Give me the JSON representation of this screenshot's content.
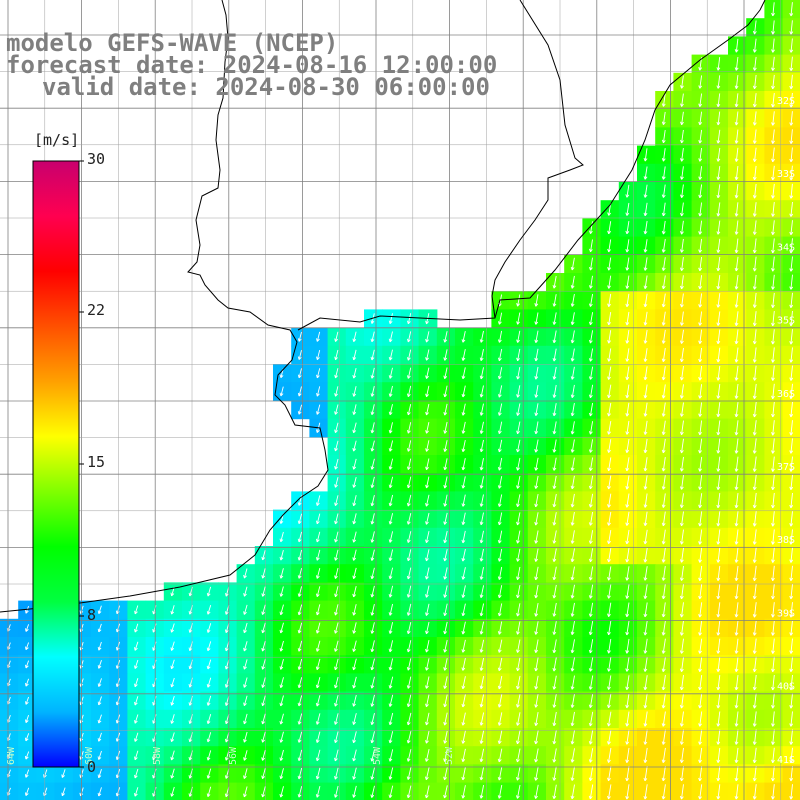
{
  "title": {
    "line1": "modelo GEFS-WAVE (NCEP)",
    "line2": "forecast date: 2024-08-16 12:00:00",
    "line3": "valid date: 2024-08-30 06:00:00"
  },
  "colorbar": {
    "unit": "[m/s]",
    "ticks": [
      {
        "label": "30",
        "value": 30
      },
      {
        "label": "22",
        "value": 22
      },
      {
        "label": "15",
        "value": 15
      },
      {
        "label": "8",
        "value": 8
      },
      {
        "label": "0",
        "value": 0
      }
    ],
    "stops": [
      "#0000ff",
      "#00b4ff",
      "#00ffff",
      "#00ff40",
      "#00ff00",
      "#80ff00",
      "#ffff00",
      "#ffa000",
      "#ff5000",
      "#ff0000",
      "#ff0050",
      "#c8006e"
    ]
  },
  "map": {
    "lat_labels": [
      "32S",
      "33S",
      "34S",
      "35S",
      "36S",
      "37S",
      "38S",
      "39S",
      "40S",
      "41S"
    ],
    "lon_labels": [
      "64W",
      "60W",
      "58W",
      "56W",
      "54W",
      "52W"
    ],
    "colors": {
      "land": "#ffffff",
      "grid": "#808080",
      "coast": "#000000",
      "arrow": "#ffffff"
    }
  }
}
